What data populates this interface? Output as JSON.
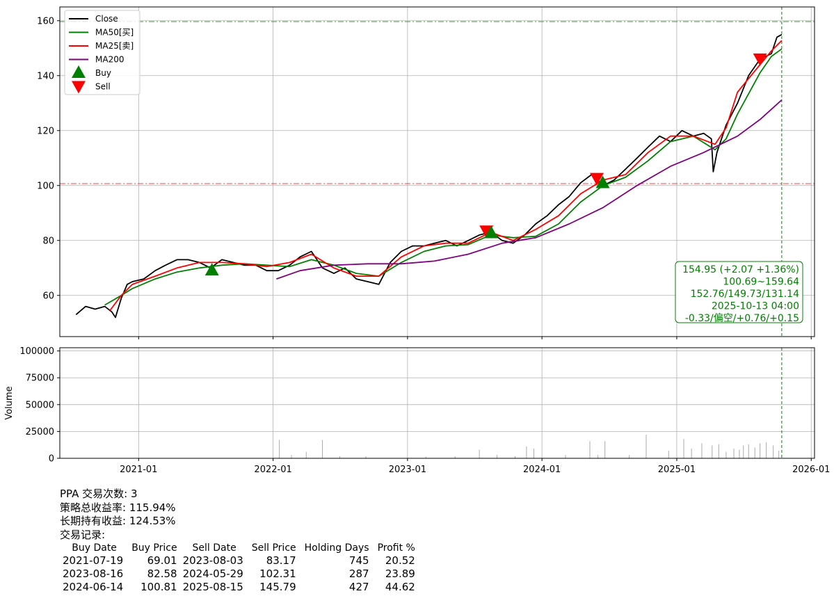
{
  "chart_data": [
    {
      "type": "line",
      "panel": "price",
      "legend_position": "upper-left",
      "grid": true,
      "ylim": [
        45,
        165
      ],
      "xlim": [
        "2020-06-01",
        "2026-01-10"
      ],
      "yticks": [
        60,
        80,
        100,
        120,
        140,
        160
      ],
      "ytick_labels": [
        "60",
        "80",
        "100",
        "120",
        "140",
        "160"
      ],
      "legend": [
        {
          "label": "Close",
          "color": "#000000",
          "kind": "line"
        },
        {
          "label": "MA50[买]",
          "color": "#008000",
          "kind": "line"
        },
        {
          "label": "MA25[卖]",
          "color": "#ff0000",
          "kind": "line"
        },
        {
          "label": "MA200",
          "color": "#800080",
          "kind": "line"
        },
        {
          "label": "Buy",
          "color": "#008000",
          "kind": "triangle-up"
        },
        {
          "label": "Sell",
          "color": "#ff0000",
          "kind": "triangle-down"
        }
      ],
      "series": [
        {
          "name": "Close",
          "color": "#000000",
          "x": [
            "2020-07-15",
            "2020-08-10",
            "2020-09-05",
            "2020-10-01",
            "2020-10-20",
            "2020-10-30",
            "2020-11-15",
            "2020-12-01",
            "2020-12-15",
            "2021-01-15",
            "2021-02-15",
            "2021-03-15",
            "2021-04-15",
            "2021-05-15",
            "2021-06-15",
            "2021-07-15",
            "2021-08-15",
            "2021-09-15",
            "2021-10-15",
            "2021-11-15",
            "2021-12-15",
            "2022-01-15",
            "2022-02-15",
            "2022-03-15",
            "2022-04-15",
            "2022-05-15",
            "2022-06-15",
            "2022-07-15",
            "2022-08-15",
            "2022-09-15",
            "2022-10-15",
            "2022-11-15",
            "2022-12-15",
            "2023-01-15",
            "2023-02-15",
            "2023-03-15",
            "2023-04-15",
            "2023-05-15",
            "2023-06-15",
            "2023-07-15",
            "2023-08-15",
            "2023-09-15",
            "2023-10-15",
            "2023-11-15",
            "2023-12-15",
            "2024-01-15",
            "2024-02-15",
            "2024-03-15",
            "2024-04-15",
            "2024-05-15",
            "2024-06-15",
            "2024-07-15",
            "2024-08-15",
            "2024-09-15",
            "2024-10-15",
            "2024-11-15",
            "2024-12-15",
            "2025-01-15",
            "2025-02-15",
            "2025-03-15",
            "2025-04-05",
            "2025-04-10",
            "2025-04-20",
            "2025-05-15",
            "2025-06-15",
            "2025-07-15",
            "2025-08-15",
            "2025-09-15",
            "2025-09-30",
            "2025-10-13"
          ],
          "values": [
            53,
            56,
            55,
            56,
            54,
            52,
            59,
            64,
            65,
            66,
            69,
            71,
            73,
            73,
            72,
            70,
            73,
            72,
            71,
            71,
            69,
            69,
            71,
            74,
            76,
            70,
            68,
            70,
            66,
            65,
            64,
            72,
            76,
            78,
            78,
            79,
            80,
            78,
            80,
            82,
            83,
            80,
            79,
            82,
            86,
            89,
            93,
            96,
            101,
            104,
            100,
            102,
            106,
            110,
            114,
            118,
            116,
            120,
            118,
            119,
            117,
            105,
            112,
            122,
            130,
            140,
            146,
            148,
            154,
            154.95
          ]
        },
        {
          "name": "MA50[买]",
          "color": "#008000",
          "x": [
            "2020-10-01",
            "2020-11-15",
            "2020-12-15",
            "2021-02-15",
            "2021-04-15",
            "2021-06-15",
            "2021-08-15",
            "2021-10-15",
            "2021-12-15",
            "2022-02-15",
            "2022-04-15",
            "2022-06-15",
            "2022-08-15",
            "2022-10-15",
            "2022-12-15",
            "2023-02-15",
            "2023-04-15",
            "2023-06-15",
            "2023-08-15",
            "2023-10-15",
            "2023-12-15",
            "2024-02-15",
            "2024-04-15",
            "2024-06-15",
            "2024-08-15",
            "2024-10-15",
            "2024-12-15",
            "2025-02-15",
            "2025-04-15",
            "2025-05-15",
            "2025-06-15",
            "2025-08-15",
            "2025-09-15",
            "2025-10-13"
          ],
          "values": [
            56.5,
            60,
            62.5,
            66,
            68.5,
            70,
            71,
            71.5,
            71,
            70.5,
            73,
            71,
            68,
            67,
            72,
            76,
            78,
            78.5,
            82,
            81,
            81.5,
            86,
            94,
            100,
            103,
            109,
            116,
            118,
            113,
            117,
            126,
            141,
            147,
            149.73
          ]
        },
        {
          "name": "MA25[卖]",
          "color": "#ff0000",
          "x": [
            "2020-10-15",
            "2020-11-15",
            "2020-12-15",
            "2021-02-15",
            "2021-04-15",
            "2021-06-15",
            "2021-08-15",
            "2021-10-15",
            "2021-12-15",
            "2022-02-15",
            "2022-04-15",
            "2022-06-15",
            "2022-08-15",
            "2022-10-15",
            "2022-12-15",
            "2023-02-15",
            "2023-04-15",
            "2023-06-15",
            "2023-08-15",
            "2023-10-15",
            "2023-12-15",
            "2024-02-15",
            "2024-04-15",
            "2024-06-15",
            "2024-08-15",
            "2024-10-15",
            "2024-12-15",
            "2025-02-15",
            "2025-04-15",
            "2025-05-15",
            "2025-06-15",
            "2025-08-15",
            "2025-09-15",
            "2025-10-13"
          ],
          "values": [
            54.5,
            60,
            64,
            67,
            70,
            72,
            72,
            71.5,
            70.5,
            72,
            75,
            70,
            67,
            67,
            74,
            78,
            79,
            79,
            83,
            80,
            84,
            89,
            97,
            102,
            104,
            112,
            118,
            118,
            115,
            121,
            134,
            144,
            149,
            152.76
          ]
        },
        {
          "name": "MA200",
          "color": "#800080",
          "x": [
            "2022-01-10",
            "2022-03-15",
            "2022-06-15",
            "2022-09-15",
            "2022-12-15",
            "2023-03-15",
            "2023-06-15",
            "2023-09-15",
            "2023-12-15",
            "2024-03-15",
            "2024-06-15",
            "2024-09-15",
            "2024-12-15",
            "2025-03-15",
            "2025-06-15",
            "2025-08-15",
            "2025-10-13"
          ],
          "values": [
            66,
            69,
            71,
            71.5,
            71.5,
            72.5,
            75,
            79,
            81,
            86,
            92,
            100,
            107,
            112,
            118,
            124,
            131.14
          ]
        }
      ],
      "markers": [
        {
          "type": "Buy",
          "x": "2021-07-19",
          "y": 69.01
        },
        {
          "type": "Sell",
          "x": "2023-08-03",
          "y": 83.17
        },
        {
          "type": "Buy",
          "x": "2023-08-16",
          "y": 82.58
        },
        {
          "type": "Sell",
          "x": "2024-05-29",
          "y": 102.31
        },
        {
          "type": "Buy",
          "x": "2024-06-14",
          "y": 100.81
        },
        {
          "type": "Sell",
          "x": "2025-08-15",
          "y": 145.79
        }
      ],
      "hlines": [
        {
          "y": 159.64,
          "color": "#008000",
          "style": "dash-dot"
        },
        {
          "y": 100.69,
          "color": "#ff0000",
          "style": "dash-dot"
        }
      ],
      "vline": {
        "x": "2025-10-13",
        "color": "#008000",
        "style": "dashed"
      },
      "info_box": {
        "color": "#008000",
        "lines": [
          "154.95 (+2.07 +1.36%)",
          "100.69~159.64",
          "152.76/149.73/131.14",
          "2025-10-13 04:00",
          "-0.33/偏空/+0.76/+0.15"
        ]
      }
    },
    {
      "type": "bar",
      "panel": "volume",
      "ylabel": "Volume",
      "grid": true,
      "ylim": [
        0,
        103000
      ],
      "yticks": [
        0,
        25000,
        50000,
        75000,
        100000
      ],
      "ytick_labels": [
        "0",
        "25000",
        "50000",
        "75000",
        "100000"
      ],
      "xticks": [
        "2021-01-01",
        "2022-01-01",
        "2023-01-01",
        "2024-01-01",
        "2025-01-01",
        "2026-01-01"
      ],
      "xtick_labels": [
        "2021-01",
        "2022-01",
        "2023-01",
        "2024-01",
        "2025-01",
        "2026-01"
      ],
      "color": "#aaaaaa",
      "x": [
        "2022-01-18",
        "2022-02-20",
        "2022-04-01",
        "2022-05-15",
        "2022-07-01",
        "2022-09-10",
        "2023-02-20",
        "2023-05-10",
        "2023-07-15",
        "2023-09-01",
        "2023-10-20",
        "2023-11-20",
        "2023-12-10",
        "2024-03-05",
        "2024-05-10",
        "2024-06-01",
        "2024-06-20",
        "2024-08-25",
        "2024-10-10",
        "2024-12-10",
        "2025-01-20",
        "2025-02-10",
        "2025-03-10",
        "2025-04-07",
        "2025-04-25",
        "2025-05-15",
        "2025-06-05",
        "2025-06-20",
        "2025-07-01",
        "2025-07-15",
        "2025-08-01",
        "2025-08-15",
        "2025-09-01",
        "2025-09-20",
        "2025-10-05"
      ],
      "values": [
        17000,
        3000,
        6000,
        17000,
        2000,
        2000,
        1500,
        2000,
        8000,
        3000,
        2000,
        11000,
        9000,
        3000,
        16000,
        3000,
        16000,
        3000,
        22000,
        7000,
        18000,
        9000,
        14000,
        12000,
        13000,
        6000,
        9000,
        8000,
        12000,
        13000,
        10000,
        14000,
        15000,
        12000,
        7000
      ]
    }
  ],
  "summary": {
    "line1": "PPA 交易次数: 3",
    "line2": "策略总收益率: 115.94%",
    "line3": "长期持有收益: 124.53%",
    "line4": "交易记录:"
  },
  "trades": {
    "headers": [
      "Buy Date",
      "Buy Price",
      "Sell Date",
      "Sell Price",
      "Holding Days",
      "Profit %"
    ],
    "rows": [
      [
        "2021-07-19",
        "69.01",
        "2023-08-03",
        "83.17",
        "745",
        "20.52"
      ],
      [
        "2023-08-16",
        "82.58",
        "2024-05-29",
        "102.31",
        "287",
        "23.89"
      ],
      [
        "2024-06-14",
        "100.81",
        "2025-08-15",
        "145.79",
        "427",
        "44.62"
      ]
    ]
  }
}
